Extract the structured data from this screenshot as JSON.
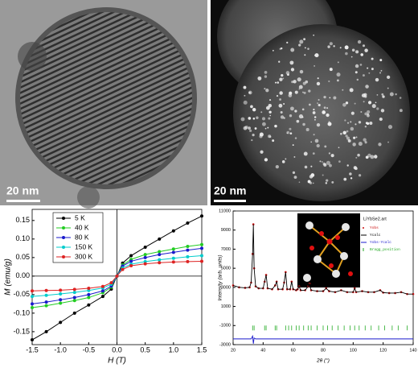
{
  "panels": [
    {
      "scale_bar": "20 nm"
    },
    {
      "scale_bar": "20 nm"
    }
  ],
  "chart_data": [
    {
      "type": "line",
      "xlabel": "H (T)",
      "ylabel": "M (emu/g)",
      "xlim": [
        -1.5,
        1.5
      ],
      "ylim": [
        -0.185,
        0.18
      ],
      "xticks": [
        -1.5,
        {
          "value": -1,
          "label": "-1.0"
        },
        -0.5,
        {
          "value": 0,
          "label": "0.0"
        },
        0.5,
        {
          "value": 1,
          "label": "1.0"
        },
        1.5
      ],
      "yticks": [
        -0.15,
        {
          "value": -0.1,
          "label": "-0.10"
        },
        -0.05,
        {
          "value": 0,
          "label": "0.00"
        },
        0.05,
        {
          "value": 0.1,
          "label": "0.10"
        },
        0.15
      ],
      "legend": "upper-left",
      "x": [
        -1.5,
        -1.25,
        -1,
        -0.75,
        -0.5,
        -0.25,
        -0.1,
        0,
        0.1,
        0.25,
        0.5,
        0.75,
        1,
        1.25,
        1.5
      ],
      "series": [
        {
          "name": "5 K",
          "color": "#000000",
          "values": [
            -0.172,
            -0.15,
            -0.125,
            -0.1,
            -0.078,
            -0.055,
            -0.035,
            0,
            0.035,
            0.055,
            0.078,
            0.1,
            0.122,
            0.143,
            0.162
          ]
        },
        {
          "name": "40 K",
          "color": "#22cc22",
          "values": [
            -0.085,
            -0.08,
            -0.073,
            -0.066,
            -0.058,
            -0.045,
            -0.03,
            0,
            0.03,
            0.045,
            0.058,
            0.066,
            0.073,
            0.08,
            0.085
          ]
        },
        {
          "name": "80 K",
          "color": "#1a1acc",
          "values": [
            -0.075,
            -0.07,
            -0.064,
            -0.058,
            -0.05,
            -0.04,
            -0.027,
            0,
            0.027,
            0.04,
            0.05,
            0.058,
            0.064,
            0.07,
            0.075
          ]
        },
        {
          "name": "150 K",
          "color": "#00cccc",
          "values": [
            -0.055,
            -0.052,
            -0.048,
            -0.044,
            -0.039,
            -0.032,
            -0.022,
            0,
            0.022,
            0.032,
            0.039,
            0.044,
            0.048,
            0.052,
            0.055
          ]
        },
        {
          "name": "300 K",
          "color": "#dd2222",
          "values": [
            -0.04,
            -0.039,
            -0.038,
            -0.036,
            -0.033,
            -0.028,
            -0.018,
            0,
            0.018,
            0.028,
            0.033,
            0.036,
            0.038,
            0.039,
            0.04
          ]
        }
      ]
    },
    {
      "type": "rietveld",
      "xlabel": "2θ (°)",
      "ylabel": "Intensity (arb. units)",
      "legend_title": "LiYbSe2.art",
      "xlim": [
        20,
        140
      ],
      "ylim": [
        -3000,
        11000
      ],
      "xticks": [
        20,
        40,
        60,
        80,
        100,
        120,
        140
      ],
      "yticks": [
        -3000,
        -1000,
        1000,
        3000,
        5000,
        7000,
        9000,
        11000
      ],
      "x": [
        20,
        24,
        28,
        31,
        32,
        33,
        33.5,
        34,
        35,
        37,
        40,
        41,
        42,
        43,
        46,
        48,
        49,
        50,
        53,
        54,
        55,
        56,
        58,
        59,
        60,
        62,
        63,
        64,
        65,
        68,
        70,
        71,
        72,
        76,
        80,
        82,
        84,
        88,
        92,
        96,
        100,
        101,
        102,
        106,
        110,
        114,
        118,
        120,
        124,
        128,
        132,
        136,
        140
      ],
      "series": [
        {
          "name": "Yobs",
          "color": "#cc1111",
          "mode": "markers",
          "values": [
            3200,
            3000,
            2950,
            3000,
            3500,
            6500,
            9600,
            5000,
            3100,
            2900,
            2900,
            3600,
            4300,
            2900,
            2800,
            3200,
            3600,
            2800,
            2800,
            3500,
            4600,
            2800,
            2800,
            3600,
            2800,
            2700,
            2800,
            3100,
            2700,
            2700,
            3100,
            3400,
            2700,
            2600,
            2600,
            2900,
            2600,
            2500,
            2700,
            2500,
            2500,
            2900,
            2500,
            2600,
            2500,
            2500,
            2700,
            2450,
            2400,
            2400,
            2500,
            2300,
            2300
          ]
        },
        {
          "name": "Ycalc",
          "color": "#000000",
          "mode": "line",
          "values": [
            3200,
            3000,
            2950,
            3000,
            3500,
            6500,
            9600,
            5000,
            3100,
            2900,
            2900,
            3600,
            4300,
            2900,
            2800,
            3200,
            3600,
            2800,
            2800,
            3500,
            4600,
            2800,
            2800,
            3600,
            2800,
            2700,
            2800,
            3100,
            2700,
            2700,
            3100,
            3400,
            2700,
            2600,
            2600,
            2900,
            2600,
            2500,
            2700,
            2500,
            2500,
            2900,
            2500,
            2600,
            2500,
            2500,
            2700,
            2450,
            2400,
            2400,
            2500,
            2300,
            2300
          ]
        },
        {
          "name": "Yobs-Ycalc",
          "color": "#1a1acc",
          "mode": "line",
          "values": [
            -2400,
            -2400,
            -2400,
            -2400,
            -2400,
            -2100,
            -2900,
            -2300,
            -2400,
            -2400,
            -2400,
            -2400,
            -2400,
            -2400,
            -2400,
            -2400,
            -2400,
            -2400,
            -2400,
            -2400,
            -2400,
            -2400,
            -2400,
            -2400,
            -2400,
            -2400,
            -2400,
            -2400,
            -2400,
            -2400,
            -2400,
            -2400,
            -2400,
            -2400,
            -2400,
            -2400,
            -2400,
            -2400,
            -2400,
            -2400,
            -2400,
            -2400,
            -2400,
            -2400,
            -2400,
            -2400,
            -2400,
            -2400,
            -2400,
            -2400,
            -2400,
            -2400,
            -2400
          ]
        },
        {
          "name": "Bragg_position",
          "color": "#22aa22",
          "mode": "ticks",
          "x": [
            33,
            34,
            41,
            42,
            48,
            49,
            55,
            57,
            59,
            62,
            64,
            67,
            70,
            72,
            76,
            80,
            83,
            86,
            90,
            94,
            98,
            101,
            104,
            108,
            112,
            117,
            121,
            126,
            130,
            136
          ]
        }
      ]
    }
  ]
}
